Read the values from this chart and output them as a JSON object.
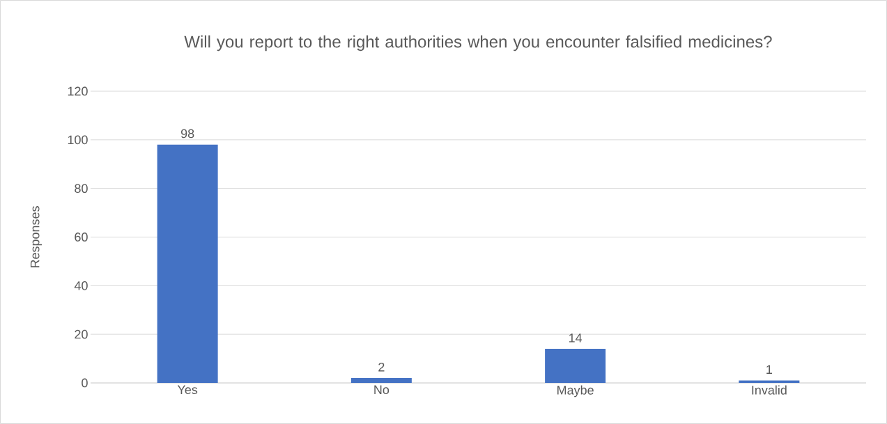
{
  "chart_data": {
    "type": "bar",
    "title": "Will you report to the right authorities when you encounter falsified medicines?",
    "ylabel": "Responses",
    "categories": [
      "Yes",
      "No",
      "Maybe",
      "Invalid"
    ],
    "values": [
      98,
      2,
      14,
      1
    ],
    "color": "#4472c4",
    "ylim": [
      0,
      120
    ],
    "yticks": [
      0,
      20,
      40,
      60,
      80,
      100,
      120
    ],
    "grid": "y",
    "data_labels": true
  }
}
